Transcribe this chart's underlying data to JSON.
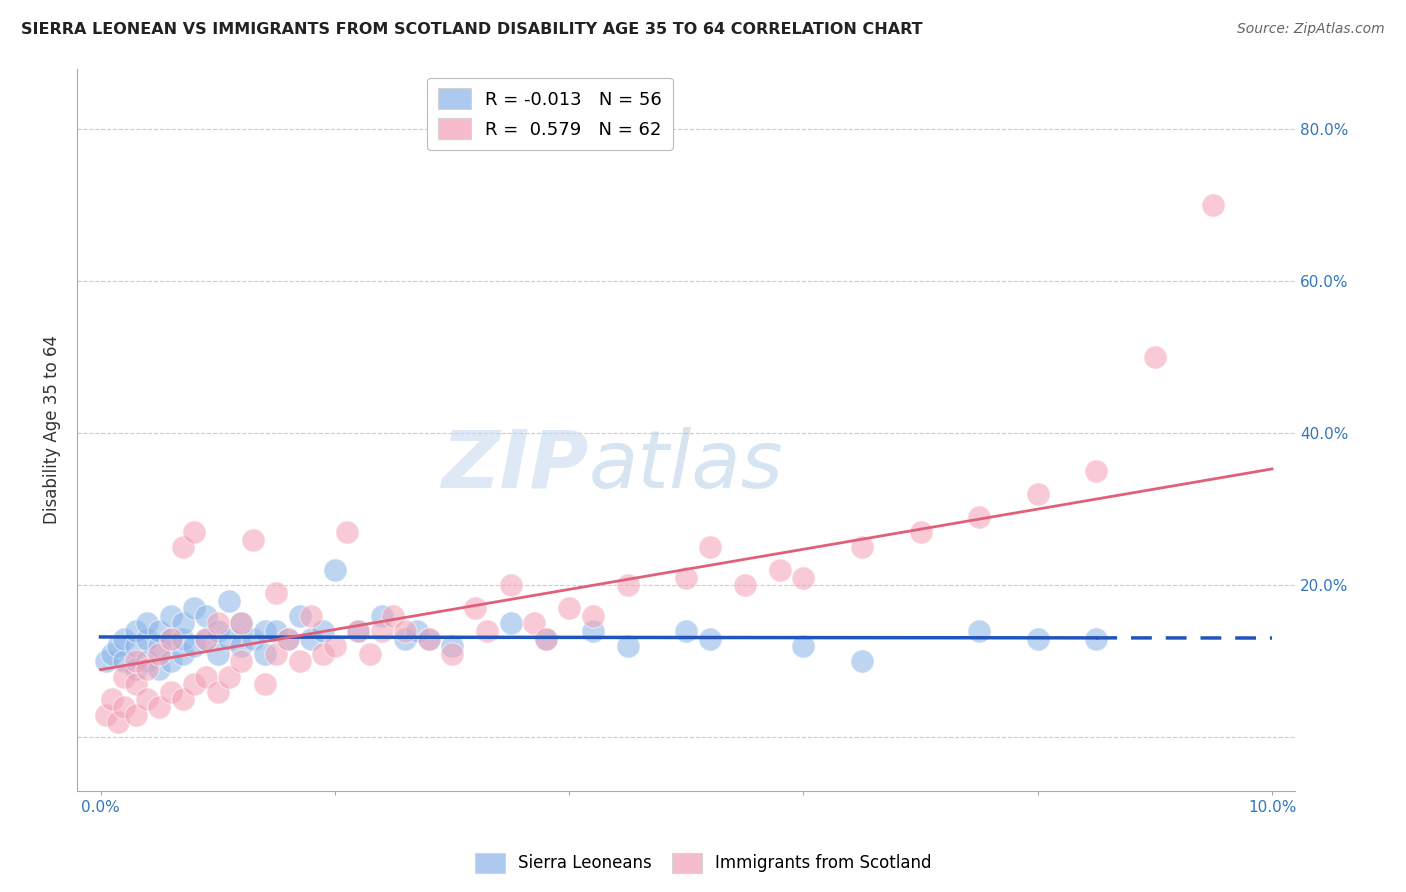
{
  "title": "SIERRA LEONEAN VS IMMIGRANTS FROM SCOTLAND DISABILITY AGE 35 TO 64 CORRELATION CHART",
  "source": "Source: ZipAtlas.com",
  "ylabel": "Disability Age 35 to 64",
  "xlim": [
    -0.002,
    0.102
  ],
  "ylim": [
    -0.07,
    0.88
  ],
  "grid_color": "#cccccc",
  "background_color": "#ffffff",
  "watermark_zip": "ZIP",
  "watermark_atlas": "atlas",
  "sierra_color": "#8ab4e8",
  "scotland_color": "#f4a0b5",
  "regression_sierra_color": "#2255bb",
  "regression_scotland_color": "#e0607a",
  "legend_R_sierra": "-0.013",
  "legend_N_sierra": "56",
  "legend_R_scotland": "0.579",
  "legend_N_scotland": "62",
  "sierra_x": [
    0.0005,
    0.001,
    0.0015,
    0.002,
    0.002,
    0.003,
    0.003,
    0.003,
    0.004,
    0.004,
    0.004,
    0.005,
    0.005,
    0.005,
    0.006,
    0.006,
    0.006,
    0.007,
    0.007,
    0.007,
    0.008,
    0.008,
    0.009,
    0.009,
    0.01,
    0.01,
    0.011,
    0.011,
    0.012,
    0.012,
    0.013,
    0.014,
    0.014,
    0.015,
    0.016,
    0.017,
    0.018,
    0.019,
    0.02,
    0.022,
    0.024,
    0.026,
    0.027,
    0.028,
    0.03,
    0.035,
    0.038,
    0.042,
    0.045,
    0.05,
    0.052,
    0.06,
    0.065,
    0.075,
    0.08,
    0.085
  ],
  "sierra_y": [
    0.1,
    0.11,
    0.12,
    0.1,
    0.13,
    0.09,
    0.12,
    0.14,
    0.1,
    0.13,
    0.15,
    0.09,
    0.12,
    0.14,
    0.1,
    0.13,
    0.16,
    0.11,
    0.13,
    0.15,
    0.12,
    0.17,
    0.13,
    0.16,
    0.11,
    0.14,
    0.13,
    0.18,
    0.12,
    0.15,
    0.13,
    0.11,
    0.14,
    0.14,
    0.13,
    0.16,
    0.13,
    0.14,
    0.22,
    0.14,
    0.16,
    0.13,
    0.14,
    0.13,
    0.12,
    0.15,
    0.13,
    0.14,
    0.12,
    0.14,
    0.13,
    0.12,
    0.1,
    0.14,
    0.13,
    0.13
  ],
  "scotland_x": [
    0.0005,
    0.001,
    0.0015,
    0.002,
    0.002,
    0.003,
    0.003,
    0.003,
    0.004,
    0.004,
    0.005,
    0.005,
    0.006,
    0.006,
    0.007,
    0.007,
    0.008,
    0.008,
    0.009,
    0.009,
    0.01,
    0.01,
    0.011,
    0.012,
    0.012,
    0.013,
    0.014,
    0.015,
    0.015,
    0.016,
    0.017,
    0.018,
    0.019,
    0.02,
    0.021,
    0.022,
    0.023,
    0.024,
    0.025,
    0.026,
    0.028,
    0.03,
    0.032,
    0.033,
    0.035,
    0.037,
    0.038,
    0.04,
    0.042,
    0.045,
    0.05,
    0.052,
    0.055,
    0.058,
    0.06,
    0.065,
    0.07,
    0.075,
    0.08,
    0.085,
    0.09,
    0.095
  ],
  "scotland_y": [
    0.03,
    0.05,
    0.02,
    0.04,
    0.08,
    0.03,
    0.07,
    0.1,
    0.05,
    0.09,
    0.04,
    0.11,
    0.06,
    0.13,
    0.05,
    0.25,
    0.07,
    0.27,
    0.08,
    0.13,
    0.06,
    0.15,
    0.08,
    0.1,
    0.15,
    0.26,
    0.07,
    0.11,
    0.19,
    0.13,
    0.1,
    0.16,
    0.11,
    0.12,
    0.27,
    0.14,
    0.11,
    0.14,
    0.16,
    0.14,
    0.13,
    0.11,
    0.17,
    0.14,
    0.2,
    0.15,
    0.13,
    0.17,
    0.16,
    0.2,
    0.21,
    0.25,
    0.2,
    0.22,
    0.21,
    0.25,
    0.27,
    0.29,
    0.32,
    0.35,
    0.5,
    0.7
  ],
  "ytick_positions": [
    0.0,
    0.2,
    0.4,
    0.6,
    0.8
  ],
  "ytick_labels": [
    "",
    "20.0%",
    "40.0%",
    "60.0%",
    "80.0%"
  ],
  "xtick_positions": [
    0.0,
    0.02,
    0.04,
    0.06,
    0.08,
    0.1
  ],
  "xtick_labels": [
    "0.0%",
    "",
    "",
    "",
    "",
    "10.0%"
  ]
}
